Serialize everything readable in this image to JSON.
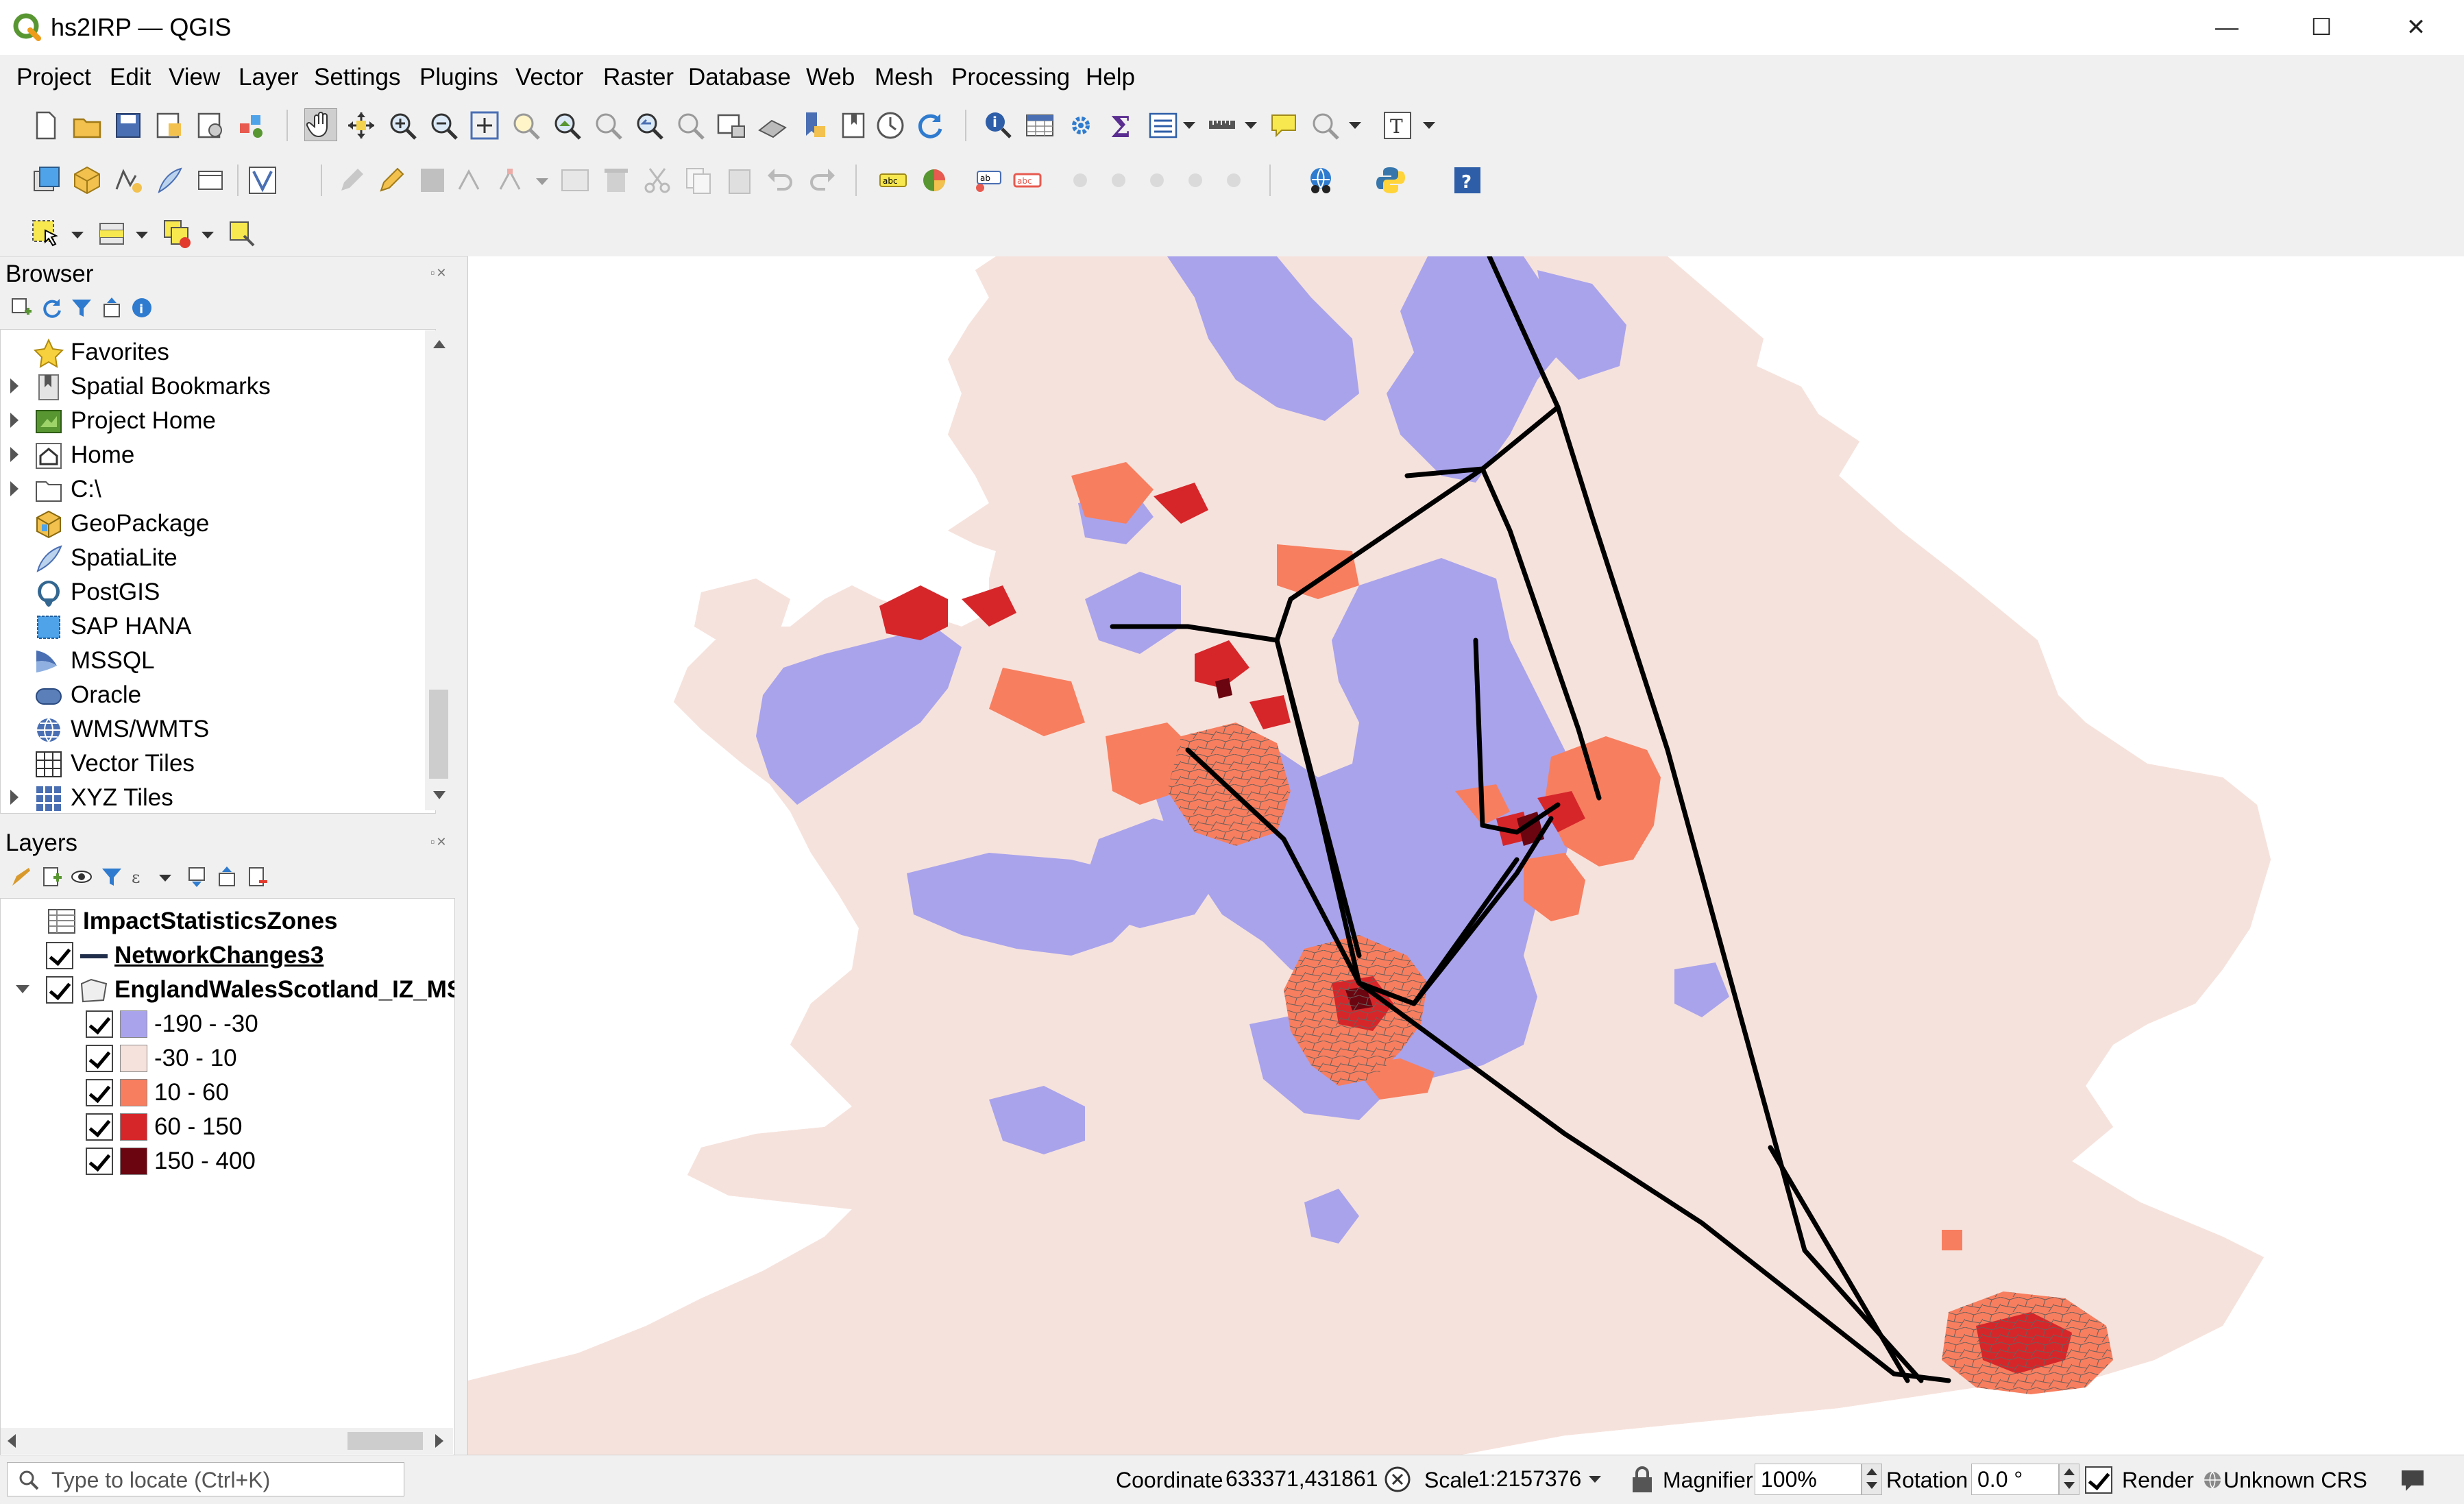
{
  "window": {
    "title": "hs2IRP — QGIS",
    "minimize_glyph": "—",
    "maximize_glyph": "☐",
    "close_glyph": "✕"
  },
  "menu": [
    "Project",
    "Edit",
    "View",
    "Layer",
    "Settings",
    "Plugins",
    "Vector",
    "Raster",
    "Database",
    "Web",
    "Mesh",
    "Processing",
    "Help"
  ],
  "browser": {
    "title": "Browser",
    "items": [
      {
        "label": "Favorites",
        "icon": "star-icon",
        "expandable": false
      },
      {
        "label": "Spatial Bookmarks",
        "icon": "bookmark-icon",
        "expandable": true
      },
      {
        "label": "Project Home",
        "icon": "project-home-icon",
        "expandable": true
      },
      {
        "label": "Home",
        "icon": "home-icon",
        "expandable": true
      },
      {
        "label": "C:\\",
        "icon": "folder-icon",
        "expandable": true
      },
      {
        "label": "GeoPackage",
        "icon": "geopackage-icon",
        "expandable": false
      },
      {
        "label": "SpatiaLite",
        "icon": "spatialite-icon",
        "expandable": false
      },
      {
        "label": "PostGIS",
        "icon": "postgis-icon",
        "expandable": false
      },
      {
        "label": "SAP HANA",
        "icon": "sap-hana-icon",
        "expandable": false
      },
      {
        "label": "MSSQL",
        "icon": "mssql-icon",
        "expandable": false
      },
      {
        "label": "Oracle",
        "icon": "oracle-icon",
        "expandable": false
      },
      {
        "label": "WMS/WMTS",
        "icon": "wms-icon",
        "expandable": false
      },
      {
        "label": "Vector Tiles",
        "icon": "vector-tiles-icon",
        "expandable": false
      },
      {
        "label": "XYZ Tiles",
        "icon": "xyz-tiles-icon",
        "expandable": true
      }
    ]
  },
  "layers": {
    "title": "Layers",
    "items": [
      {
        "label": "ImpactStatisticsZones",
        "type": "table",
        "checked": false
      },
      {
        "label": "NetworkChanges3",
        "type": "line",
        "checked": true
      },
      {
        "label": "EnglandWalesScotland_IZ_MS",
        "type": "polygon",
        "checked": true
      }
    ],
    "legend": [
      {
        "label": "-190 - -30",
        "color": "#a9a3ec"
      },
      {
        "label": "-30 - 10",
        "color": "#f6e2dc"
      },
      {
        "label": "10 - 60",
        "color": "#f77e5f"
      },
      {
        "label": "60 - 150",
        "color": "#d6262a"
      },
      {
        "label": "150 - 400",
        "color": "#6b0510"
      }
    ]
  },
  "colors": {
    "land": "#f6e2dc",
    "negative": "#a9a3ec",
    "low_positive": "#f77e5f",
    "mid_positive": "#d6262a",
    "high_positive": "#6b0510",
    "network_line": "#000000",
    "sea": "#ffffff"
  },
  "status": {
    "locator_placeholder": "Type to locate (Ctrl+K)",
    "coordinate_label": "Coordinate",
    "coordinate_value": "633371,431861",
    "scale_label": "Scale",
    "scale_value": "1:2157376",
    "magnifier_label": "Magnifier",
    "magnifier_value": "100%",
    "rotation_label": "Rotation",
    "rotation_value": "0.0 °",
    "render_label": "Render",
    "crs_label": "Unknown CRS"
  }
}
